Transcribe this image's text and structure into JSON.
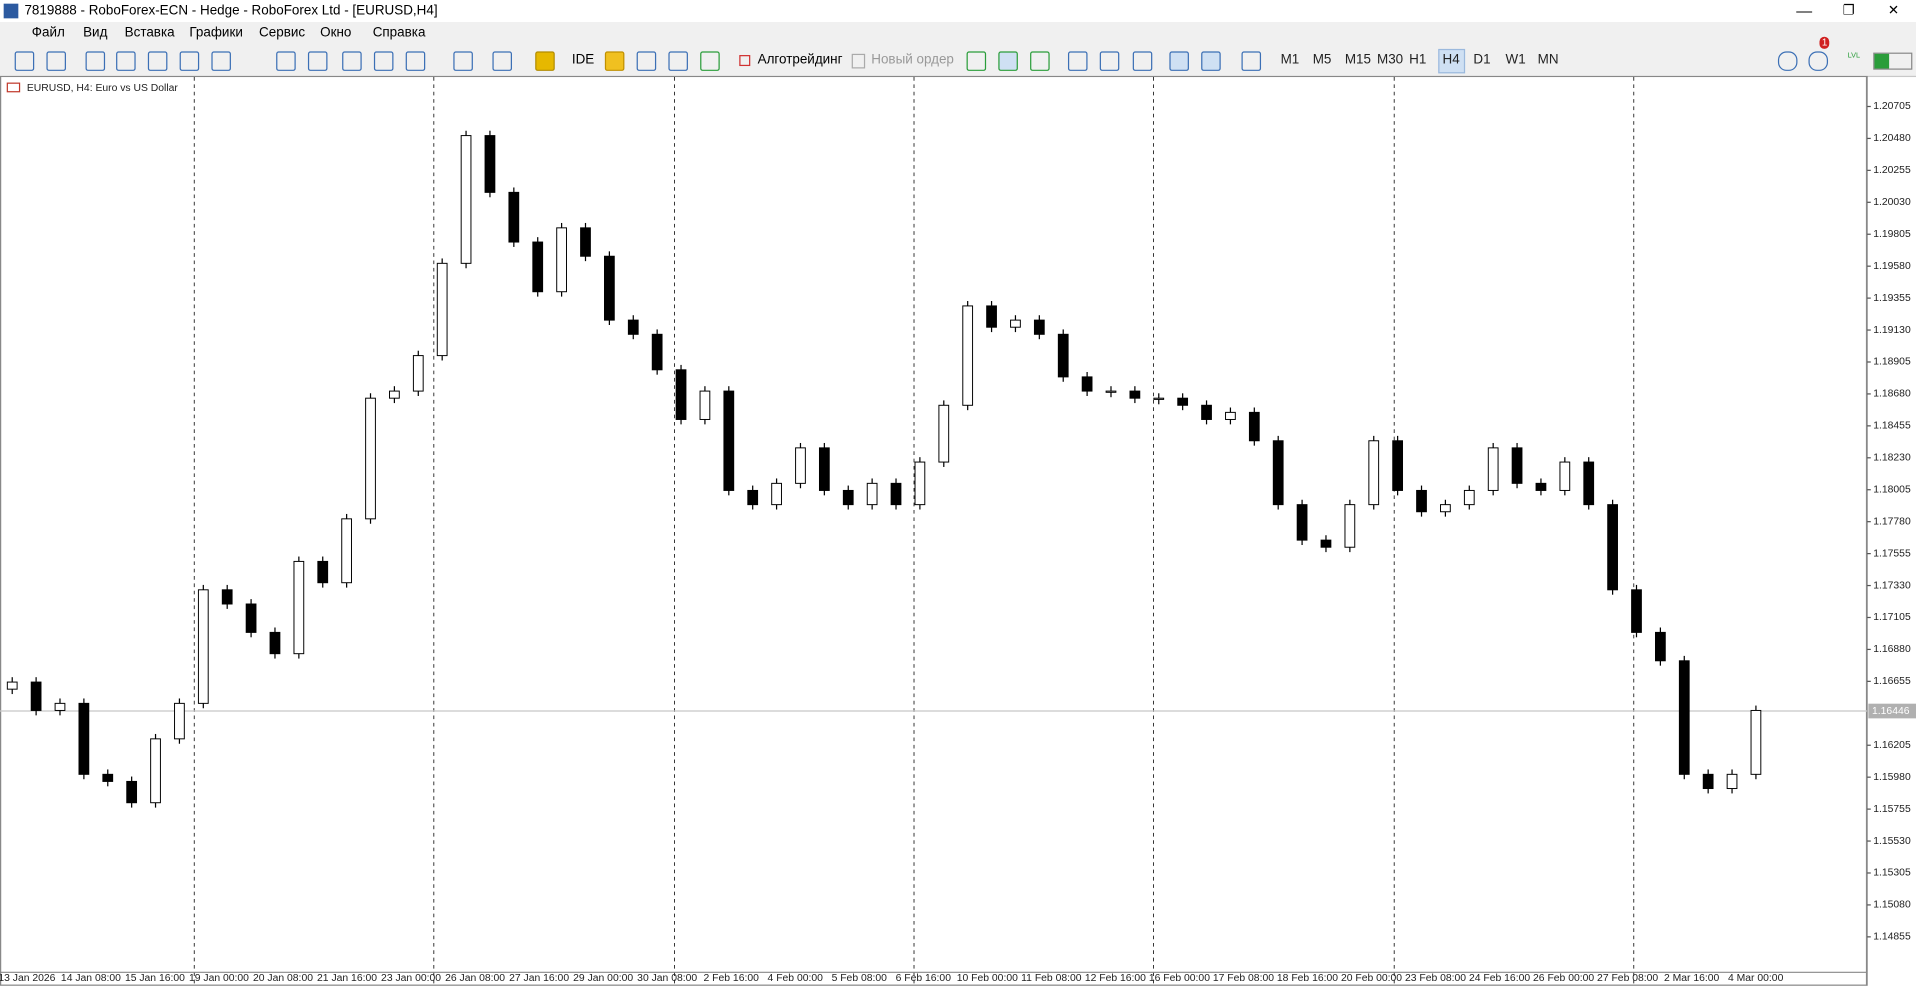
{
  "window": {
    "title": "7819888 - RoboForex-ECN - Hedge - RoboForex Ltd - [EURUSD,H4]"
  },
  "menu": [
    "Файл",
    "Вид",
    "Вставка",
    "Графики",
    "Сервис",
    "Окно",
    "Справка"
  ],
  "toolbar": {
    "ide": "IDE",
    "algo": "Алготрейдинг",
    "new_order": "Новый ордер",
    "timeframes": [
      "M1",
      "M5",
      "M15",
      "M30",
      "H1",
      "H4",
      "D1",
      "W1",
      "MN"
    ],
    "active_timeframe": "H4",
    "notifications": "1",
    "lvl": "LVL"
  },
  "chart_data": {
    "type": "candlestick",
    "title": "EURUSD, H4:  Euro vs US Dollar",
    "open": [
      1.166,
      1.1665,
      1.1645,
      1.165,
      1.16,
      1.1595,
      1.158,
      1.1625,
      1.165,
      1.173,
      1.172,
      1.17,
      1.1685,
      1.175,
      1.1735,
      1.178,
      1.1865,
      1.187,
      1.1895,
      1.196,
      1.205,
      1.201,
      1.1975,
      1.194,
      1.1985,
      1.1965,
      1.192,
      1.191,
      1.1885,
      1.185,
      1.187,
      1.18,
      1.179,
      1.1805,
      1.183,
      1.18,
      1.179,
      1.1805,
      1.179,
      1.182,
      1.186,
      1.193,
      1.1915,
      1.192,
      1.191,
      1.188,
      1.187,
      1.187,
      1.1865,
      1.1865,
      1.186,
      1.185,
      1.1855,
      1.1835,
      1.179,
      1.1765,
      1.176,
      1.179,
      1.1835,
      1.18,
      1.1785,
      1.179,
      1.18,
      1.183,
      1.1805,
      1.18,
      1.182,
      1.179,
      1.173,
      1.17,
      1.168,
      1.16,
      1.159,
      1.16
    ],
    "close": [
      1.1665,
      1.1645,
      1.165,
      1.16,
      1.1595,
      1.158,
      1.1625,
      1.165,
      1.173,
      1.172,
      1.17,
      1.1685,
      1.175,
      1.1735,
      1.178,
      1.1865,
      1.187,
      1.1895,
      1.196,
      1.205,
      1.201,
      1.1975,
      1.194,
      1.1985,
      1.1965,
      1.192,
      1.191,
      1.1885,
      1.185,
      1.187,
      1.18,
      1.179,
      1.1805,
      1.183,
      1.18,
      1.179,
      1.1805,
      1.179,
      1.182,
      1.186,
      1.193,
      1.1915,
      1.192,
      1.191,
      1.188,
      1.187,
      1.187,
      1.1865,
      1.1865,
      1.186,
      1.185,
      1.1855,
      1.1835,
      1.179,
      1.1765,
      1.176,
      1.179,
      1.1835,
      1.18,
      1.1785,
      1.179,
      1.18,
      1.183,
      1.1805,
      1.18,
      1.182,
      1.179,
      1.173,
      1.17,
      1.168,
      1.16,
      1.159,
      1.16,
      1.1645
    ],
    "up_color": "#ffffff",
    "down_color": "#000000",
    "ylim": [
      1.14631,
      1.20921
    ],
    "yticks": [
      1.20705,
      {
        "value": 1.2048,
        "label": "1.20480"
      },
      1.20255,
      {
        "value": 1.2003,
        "label": "1.20030"
      },
      1.19805,
      {
        "value": 1.1958,
        "label": "1.19580"
      },
      1.19355,
      {
        "value": 1.1913,
        "label": "1.19130"
      },
      1.18905,
      {
        "value": 1.1868,
        "label": "1.18680"
      },
      1.18455,
      {
        "value": 1.1823,
        "label": "1.18230"
      },
      1.18005,
      {
        "value": 1.1778,
        "label": "1.17780"
      },
      1.17555,
      {
        "value": 1.1733,
        "label": "1.17330"
      },
      1.17105,
      {
        "value": 1.1688,
        "label": "1.16880"
      },
      1.16655,
      1.16205,
      {
        "value": 1.1598,
        "label": "1.15980"
      },
      1.15755,
      {
        "value": 1.1553,
        "label": "1.15530"
      },
      1.15305,
      {
        "value": 1.1508,
        "label": "1.15080"
      },
      1.14855
    ],
    "current_price": 1.16446,
    "x_labels": [
      "13 Jan 2026",
      "14 Jan 08:00",
      "15 Jan 16:00",
      "19 Jan 00:00",
      "20 Jan 08:00",
      "21 Jan 16:00",
      "23 Jan 00:00",
      "26 Jan 08:00",
      "27 Jan 16:00",
      "29 Jan 00:00",
      "30 Jan 08:00",
      "2 Feb 16:00",
      "4 Feb 00:00",
      "5 Feb 08:00",
      "6 Feb 16:00",
      "10 Feb 00:00",
      "11 Feb 08:00",
      "12 Feb 16:00",
      "16 Feb 00:00",
      "17 Feb 08:00",
      "18 Feb 16:00",
      "20 Feb 00:00",
      "23 Feb 08:00",
      "24 Feb 16:00",
      "26 Feb 00:00",
      "27 Feb 08:00",
      "2 Mar 16:00",
      "4 Mar 00:00"
    ]
  }
}
